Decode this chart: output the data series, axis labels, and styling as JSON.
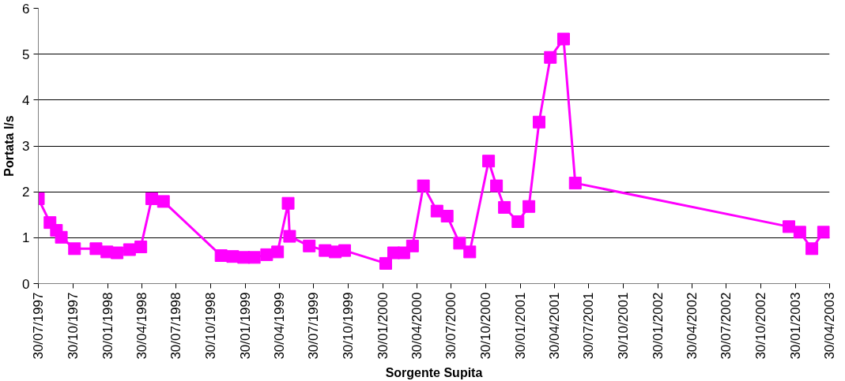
{
  "chart_data": {
    "type": "line",
    "xlabel": "Sorgente Supita",
    "ylabel": "Portata l/s",
    "x": [
      "1997-07-30",
      "1997-08-30",
      "1997-09-16",
      "1997-09-29",
      "1997-11-03",
      "1997-12-30",
      "1998-01-28",
      "1998-02-24",
      "1998-03-29",
      "1998-04-28",
      "1998-05-27",
      "1998-06-27",
      "1998-11-27",
      "1998-12-28",
      "1999-01-26",
      "1999-02-23",
      "1999-03-28",
      "1999-04-26",
      "1999-05-24",
      "1999-05-28",
      "1999-07-19",
      "1999-08-30",
      "1999-09-26",
      "1999-10-21",
      "2000-02-07",
      "2000-02-28",
      "2000-03-26",
      "2000-04-18",
      "2000-05-17",
      "2000-06-22",
      "2000-07-19",
      "2000-08-21",
      "2000-09-17",
      "2000-11-06",
      "2000-11-27",
      "2000-12-18",
      "2001-01-23",
      "2001-02-21",
      "2001-03-20",
      "2001-04-19",
      "2001-05-24",
      "2001-06-24",
      "2003-01-12",
      "2003-02-10",
      "2003-03-14",
      "2003-04-14"
    ],
    "series": [
      {
        "color": "#ff00ff",
        "values": [
          1.85,
          1.33,
          1.16,
          1.01,
          0.76,
          0.76,
          0.69,
          0.67,
          0.74,
          0.8,
          1.85,
          1.79,
          0.61,
          0.59,
          0.57,
          0.57,
          0.63,
          0.69,
          1.75,
          1.03,
          0.82,
          0.72,
          0.69,
          0.72,
          0.44,
          0.67,
          0.67,
          0.82,
          2.13,
          1.58,
          1.47,
          0.88,
          0.69,
          2.67,
          2.13,
          1.66,
          1.35,
          1.68,
          3.52,
          4.93,
          5.33,
          2.19,
          1.24,
          1.12,
          0.76,
          1.12
        ]
      }
    ],
    "xlim": [
      "1997-07-30",
      "2003-04-30"
    ],
    "xticks": [
      {
        "value": "1997-07-30",
        "label": "30/07/1997"
      },
      {
        "value": "1997-10-30",
        "label": "30/10/1997"
      },
      {
        "value": "1998-01-30",
        "label": "30/01/1998"
      },
      {
        "value": "1998-04-30",
        "label": "30/04/1998"
      },
      {
        "value": "1998-07-30",
        "label": "30/07/1998"
      },
      {
        "value": "1998-10-30",
        "label": "30/10/1998"
      },
      {
        "value": "1999-01-30",
        "label": "30/01/1999"
      },
      {
        "value": "1999-04-30",
        "label": "30/04/1999"
      },
      {
        "value": "1999-07-30",
        "label": "30/07/1999"
      },
      {
        "value": "1999-10-30",
        "label": "30/10/1999"
      },
      {
        "value": "2000-01-30",
        "label": "30/01/2000"
      },
      {
        "value": "2000-04-30",
        "label": "30/04/2000"
      },
      {
        "value": "2000-07-30",
        "label": "30/07/2000"
      },
      {
        "value": "2000-10-30",
        "label": "30/10/2000"
      },
      {
        "value": "2001-01-30",
        "label": "30/01/2001"
      },
      {
        "value": "2001-04-30",
        "label": "30/04/2001"
      },
      {
        "value": "2001-07-30",
        "label": "30/07/2001"
      },
      {
        "value": "2001-10-30",
        "label": "30/10/2001"
      },
      {
        "value": "2002-01-30",
        "label": "30/01/2002"
      },
      {
        "value": "2002-04-30",
        "label": "30/04/2002"
      },
      {
        "value": "2002-07-30",
        "label": "30/07/2002"
      },
      {
        "value": "2002-10-30",
        "label": "30/10/2002"
      },
      {
        "value": "2003-01-30",
        "label": "30/01/2003"
      },
      {
        "value": "2003-04-30",
        "label": "30/04/2003"
      }
    ],
    "ylim": [
      0,
      6
    ],
    "yticks": [
      0,
      1,
      2,
      3,
      4,
      5,
      6
    ],
    "grid": "y",
    "marker": "square",
    "line_style": "solid"
  }
}
